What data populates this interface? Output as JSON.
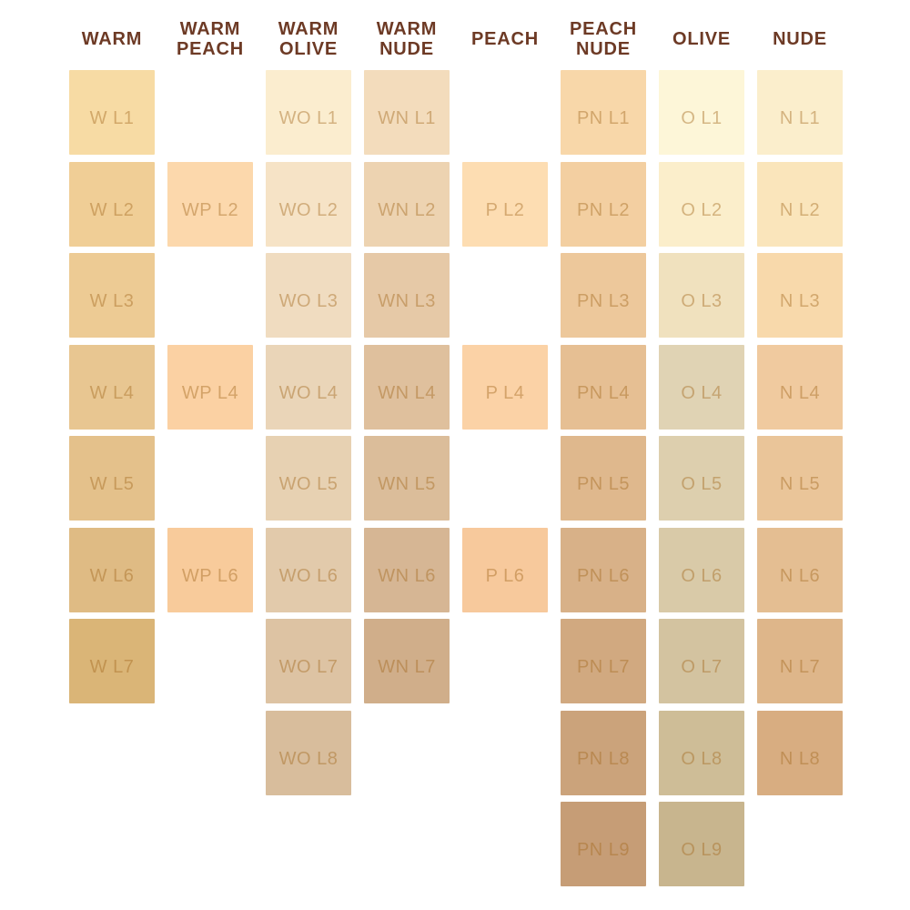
{
  "palette": {
    "background": "#FFFFFF",
    "header_text": "#6D3A25",
    "swatch_label": "rgba(164,106,33,0.45)"
  },
  "chart_data": {
    "type": "table",
    "description_rows": [
      "L1",
      "L2",
      "L3",
      "L4",
      "L5",
      "L6",
      "L7",
      "L8",
      "L9"
    ],
    "columns": [
      {
        "header": "WARM",
        "swatches": [
          {
            "label": "W L1",
            "level": 1,
            "color": "#F7DBA4"
          },
          {
            "label": "W L2",
            "level": 2,
            "color": "#F0CE96"
          },
          {
            "label": "W L3",
            "level": 3,
            "color": "#EDCB94"
          },
          {
            "label": "W L4",
            "level": 4,
            "color": "#E8C691"
          },
          {
            "label": "W L5",
            "level": 5,
            "color": "#E4C18B"
          },
          {
            "label": "W L6",
            "level": 6,
            "color": "#DFBB84"
          },
          {
            "label": "W L7",
            "level": 7,
            "color": "#DAB577"
          }
        ]
      },
      {
        "header": "WARM PEACH",
        "swatches": [
          {
            "label": "WP L2",
            "level": 2,
            "color": "#FCD8AC"
          },
          {
            "label": "WP L4",
            "level": 4,
            "color": "#FBD1A3"
          },
          {
            "label": "WP L6",
            "level": 6,
            "color": "#F8CB9B"
          }
        ]
      },
      {
        "header": "WARM OLIVE",
        "swatches": [
          {
            "label": "WO L1",
            "level": 1,
            "color": "#FBEDCF"
          },
          {
            "label": "WO L2",
            "level": 2,
            "color": "#F6E3C6"
          },
          {
            "label": "WO L3",
            "level": 3,
            "color": "#F0DCC0"
          },
          {
            "label": "WO L4",
            "level": 4,
            "color": "#EAD5B8"
          },
          {
            "label": "WO L5",
            "level": 5,
            "color": "#E7D1B2"
          },
          {
            "label": "WO L6",
            "level": 6,
            "color": "#E2CAAB"
          },
          {
            "label": "WO L7",
            "level": 7,
            "color": "#DDC3A3"
          },
          {
            "label": "WO L8",
            "level": 8,
            "color": "#D8BD9C"
          }
        ]
      },
      {
        "header": "WARM NUDE",
        "swatches": [
          {
            "label": "WN L1",
            "level": 1,
            "color": "#F3DCBC"
          },
          {
            "label": "WN L2",
            "level": 2,
            "color": "#EDD3B1"
          },
          {
            "label": "WN L3",
            "level": 3,
            "color": "#E6C9A7"
          },
          {
            "label": "WN L4",
            "level": 4,
            "color": "#DFC09D"
          },
          {
            "label": "WN L5",
            "level": 5,
            "color": "#DBBD9A"
          },
          {
            "label": "WN L6",
            "level": 6,
            "color": "#D6B694"
          },
          {
            "label": "WN L7",
            "level": 7,
            "color": "#D0AE8A"
          }
        ]
      },
      {
        "header": "PEACH",
        "swatches": [
          {
            "label": "P L2",
            "level": 2,
            "color": "#FDDDB2"
          },
          {
            "label": "P L4",
            "level": 4,
            "color": "#FBD2A6"
          },
          {
            "label": "P L6",
            "level": 6,
            "color": "#F7C99C"
          }
        ]
      },
      {
        "header": "PEACH NUDE",
        "swatches": [
          {
            "label": "PN L1",
            "level": 1,
            "color": "#F8D7A9"
          },
          {
            "label": "PN L2",
            "level": 2,
            "color": "#F3CFA1"
          },
          {
            "label": "PN L3",
            "level": 3,
            "color": "#EDC89B"
          },
          {
            "label": "PN L4",
            "level": 4,
            "color": "#E6BF93"
          },
          {
            "label": "PN L5",
            "level": 5,
            "color": "#DFB88D"
          },
          {
            "label": "PN L6",
            "level": 6,
            "color": "#D8B188"
          },
          {
            "label": "PN L7",
            "level": 7,
            "color": "#D1A980"
          },
          {
            "label": "PN L8",
            "level": 8,
            "color": "#CBA37B"
          },
          {
            "label": "PN L9",
            "level": 9,
            "color": "#C69D76"
          }
        ]
      },
      {
        "header": "OLIVE",
        "swatches": [
          {
            "label": "O L1",
            "level": 1,
            "color": "#FDF6D8"
          },
          {
            "label": "O L2",
            "level": 2,
            "color": "#FBEECB"
          },
          {
            "label": "O L3",
            "level": 3,
            "color": "#F0E1BE"
          },
          {
            "label": "O L4",
            "level": 4,
            "color": "#E0D3B4"
          },
          {
            "label": "O L5",
            "level": 5,
            "color": "#DDCFAE"
          },
          {
            "label": "O L6",
            "level": 6,
            "color": "#D9CAA8"
          },
          {
            "label": "O L7",
            "level": 7,
            "color": "#D3C3A0"
          },
          {
            "label": "O L8",
            "level": 8,
            "color": "#CEBD97"
          },
          {
            "label": "O L9",
            "level": 9,
            "color": "#C8B58E"
          }
        ]
      },
      {
        "header": "NUDE",
        "swatches": [
          {
            "label": "N L1",
            "level": 1,
            "color": "#FBEECC"
          },
          {
            "label": "N L2",
            "level": 2,
            "color": "#FAE5BB"
          },
          {
            "label": "N L3",
            "level": 3,
            "color": "#F8D9AB"
          },
          {
            "label": "N L4",
            "level": 4,
            "color": "#F0CA9F"
          },
          {
            "label": "N L5",
            "level": 5,
            "color": "#EAC599"
          },
          {
            "label": "N L6",
            "level": 6,
            "color": "#E4BE92"
          },
          {
            "label": "N L7",
            "level": 7,
            "color": "#DEB68A"
          },
          {
            "label": "N L8",
            "level": 8,
            "color": "#D8AD81"
          }
        ]
      }
    ]
  }
}
